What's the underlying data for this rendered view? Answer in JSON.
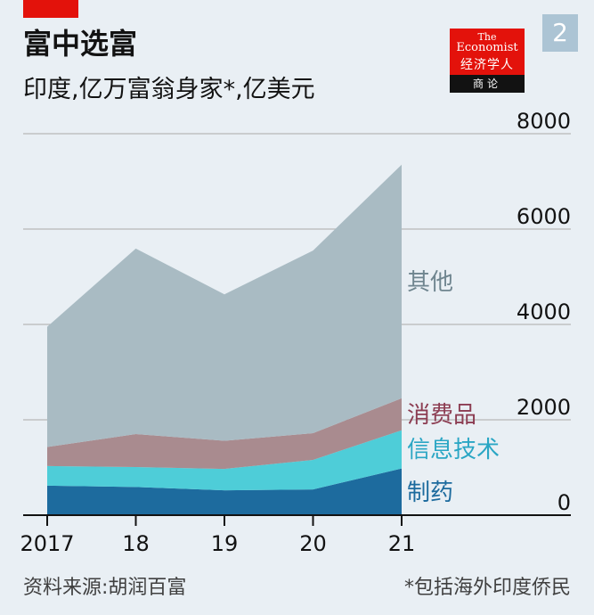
{
  "header": {
    "title": "富中选富",
    "subtitle": "印度,亿万富翁身家*,亿美元",
    "chart_number": "2",
    "logo": {
      "line1": "The",
      "line2": "Economist",
      "line3": "经济学人",
      "line4": "商论"
    }
  },
  "footer": {
    "source": "资料来源:胡润百富",
    "footnote": "*包括海外印度侨民"
  },
  "colors": {
    "background": "#e9eff4",
    "brand_red": "#e3120b",
    "gridline": "#b7b7b7"
  },
  "chart_data": {
    "type": "area",
    "stacked": true,
    "categories": [
      "2017",
      "18",
      "19",
      "20",
      "21"
    ],
    "x": [
      2017,
      2018,
      2019,
      2020,
      2021
    ],
    "ylim": [
      0,
      8000
    ],
    "yticks": [
      0,
      2000,
      4000,
      6000,
      8000
    ],
    "y_axis_side": "right",
    "grid": true,
    "legend_placement": "inline-right",
    "series": [
      {
        "name": "制药",
        "color": "#1d6b9e",
        "values": [
          620,
          590,
          520,
          540,
          980
        ]
      },
      {
        "name": "信息技术",
        "color": "#4ecdd8",
        "values": [
          410,
          420,
          450,
          620,
          800
        ]
      },
      {
        "name": "消费品",
        "color": "#a98b8f",
        "values": [
          400,
          690,
          590,
          560,
          670
        ]
      },
      {
        "name": "其他",
        "color": "#a9bbc3",
        "values": [
          2520,
          3890,
          3070,
          3830,
          4900
        ]
      }
    ],
    "label_colors": [
      "#1d6b9e",
      "#2aa6c4",
      "#8c3d52",
      "#6f858f"
    ]
  }
}
